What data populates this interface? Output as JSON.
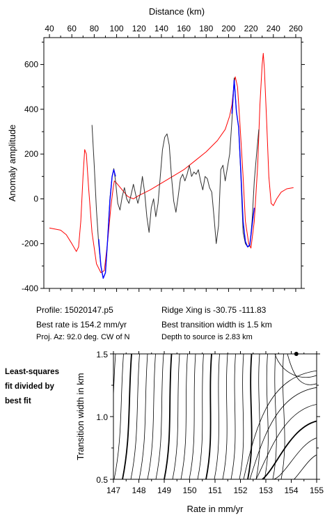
{
  "chart_data": [
    {
      "type": "line",
      "xlabel": "Distance (km)",
      "ylabel": "Anomaly amplitude",
      "xlim": [
        35,
        265
      ],
      "ylim": [
        -400,
        720
      ],
      "xticks": [
        "40",
        "60",
        "80",
        "100",
        "120",
        "140",
        "160",
        "180",
        "200",
        "220",
        "240",
        "260"
      ],
      "yticks": [
        "-400",
        "-200",
        "0",
        "200",
        "400",
        "600"
      ],
      "xtick_values": [
        40,
        60,
        80,
        100,
        120,
        140,
        160,
        180,
        200,
        220,
        240,
        260
      ],
      "ytick_values": [
        -400,
        -200,
        0,
        200,
        400,
        600
      ],
      "x_axis_position": "top",
      "grid": false,
      "series": [
        {
          "color": "#ff0000",
          "points": [
            [
              40,
              -130
            ],
            [
              50,
              -140
            ],
            [
              55,
              -160
            ],
            [
              60,
              -200
            ],
            [
              64,
              -235
            ],
            [
              66,
              -215
            ],
            [
              68,
              -100
            ],
            [
              70,
              100
            ],
            [
              71.5,
              220
            ],
            [
              73,
              200
            ],
            [
              75,
              50
            ],
            [
              78,
              -150
            ],
            [
              82,
              -290
            ],
            [
              86,
              -330
            ],
            [
              89,
              -320
            ],
            [
              92,
              -190
            ],
            [
              95,
              -30
            ],
            [
              97,
              50
            ],
            [
              98,
              80
            ],
            [
              100,
              70
            ],
            [
              105,
              40
            ],
            [
              110,
              10
            ],
            [
              115,
              0
            ],
            [
              120,
              15
            ],
            [
              130,
              40
            ],
            [
              140,
              70
            ],
            [
              150,
              100
            ],
            [
              160,
              130
            ],
            [
              170,
              170
            ],
            [
              180,
              210
            ],
            [
              190,
              260
            ],
            [
              197,
              310
            ],
            [
              201,
              370
            ],
            [
              203,
              420
            ],
            [
              205,
              520
            ],
            [
              206,
              545
            ],
            [
              208,
              500
            ],
            [
              210,
              350
            ],
            [
              213,
              100
            ],
            [
              215,
              -100
            ],
            [
              218,
              -200
            ],
            [
              220,
              -220
            ],
            [
              223,
              -100
            ],
            [
              226,
              150
            ],
            [
              228,
              420
            ],
            [
              230,
              600
            ],
            [
              231,
              650
            ],
            [
              232,
              580
            ],
            [
              234,
              350
            ],
            [
              236,
              100
            ],
            [
              238,
              -20
            ],
            [
              240,
              -30
            ],
            [
              243,
              0
            ],
            [
              247,
              30
            ],
            [
              252,
              45
            ],
            [
              258,
              50
            ]
          ]
        },
        {
          "color": "#303030",
          "points": [
            [
              78,
              330
            ],
            [
              80,
              150
            ],
            [
              82,
              -50
            ],
            [
              84,
              -200
            ],
            [
              86,
              -300
            ],
            [
              88,
              -355
            ],
            [
              90,
              -330
            ],
            [
              92,
              -180
            ],
            [
              94,
              0
            ],
            [
              96,
              100
            ],
            [
              97.5,
              135
            ],
            [
              99,
              80
            ],
            [
              101,
              -20
            ],
            [
              103,
              -50
            ],
            [
              105,
              10
            ],
            [
              107,
              50
            ],
            [
              109,
              0
            ],
            [
              111,
              -20
            ],
            [
              113,
              20
            ],
            [
              115,
              65
            ],
            [
              117,
              20
            ],
            [
              119,
              -20
            ],
            [
              121,
              20
            ],
            [
              123,
              100
            ],
            [
              125,
              30
            ],
            [
              127,
              -80
            ],
            [
              129,
              -150
            ],
            [
              131,
              -40
            ],
            [
              133,
              0
            ],
            [
              135,
              -80
            ],
            [
              137,
              -20
            ],
            [
              139,
              100
            ],
            [
              141,
              220
            ],
            [
              143,
              275
            ],
            [
              145,
              290
            ],
            [
              147,
              240
            ],
            [
              149,
              100
            ],
            [
              151,
              -10
            ],
            [
              153,
              -60
            ],
            [
              155,
              10
            ],
            [
              157,
              90
            ],
            [
              159,
              110
            ],
            [
              161,
              80
            ],
            [
              163,
              110
            ],
            [
              165,
              150
            ],
            [
              167,
              100
            ],
            [
              169,
              120
            ],
            [
              171,
              110
            ],
            [
              173,
              130
            ],
            [
              175,
              80
            ],
            [
              177,
              40
            ],
            [
              179,
              100
            ],
            [
              181,
              90
            ],
            [
              183,
              50
            ],
            [
              185,
              30
            ],
            [
              187,
              -80
            ],
            [
              189,
              -200
            ],
            [
              191,
              -120
            ],
            [
              193,
              130
            ],
            [
              195,
              150
            ],
            [
              197,
              80
            ],
            [
              199,
              140
            ],
            [
              201,
              200
            ],
            [
              203,
              350
            ],
            [
              205,
              540
            ],
            [
              207,
              390
            ],
            [
              209,
              320
            ],
            [
              211,
              100
            ],
            [
              213,
              -150
            ],
            [
              215,
              -200
            ],
            [
              217,
              -215
            ],
            [
              219,
              -210
            ],
            [
              221,
              -100
            ],
            [
              223,
              80
            ],
            [
              225,
              200
            ],
            [
              227,
              310
            ]
          ]
        },
        {
          "color": "#0000ff",
          "points": [
            [
              84,
              -180
            ],
            [
              86,
              -300
            ],
            [
              88,
              -355
            ],
            [
              90,
              -330
            ],
            [
              92,
              -180
            ],
            [
              94,
              -10
            ],
            [
              96,
              100
            ],
            [
              97.5,
              130
            ],
            [
              99,
              100
            ]
          ]
        },
        {
          "color": "#0000ff",
          "points": [
            [
              203,
              380
            ],
            [
              205,
              530
            ],
            [
              207,
              390
            ],
            [
              209,
              320
            ],
            [
              211,
              120
            ],
            [
              213,
              -100
            ],
            [
              215,
              -190
            ],
            [
              217,
              -215
            ],
            [
              219,
              -205
            ],
            [
              221,
              -120
            ],
            [
              223,
              -40
            ]
          ]
        }
      ]
    },
    {
      "type": "contour",
      "xlabel": "Rate in mm/yr",
      "ylabel": "Transition width in km",
      "xlim": [
        147,
        155
      ],
      "ylim": [
        0.5,
        1.5
      ],
      "xticks": [
        "147",
        "148",
        "149",
        "150",
        "151",
        "152",
        "153",
        "154",
        "155"
      ],
      "yticks": [
        "0.5",
        "1.0",
        "1.5"
      ],
      "xtick_values": [
        147,
        148,
        149,
        150,
        151,
        152,
        153,
        154,
        155
      ],
      "ytick_values": [
        0.5,
        1.0,
        1.5
      ],
      "best_fit": {
        "x": 154.2,
        "y": 1.5
      },
      "contour_levels_left_count": 22,
      "contour_levels_right_count": 6,
      "contour_line_color": "#000000"
    }
  ],
  "info": {
    "profile": "Profile: 15020147.p5",
    "best_rate": "Best rate is 154.2 mm/yr",
    "proj_az": "Proj. Az: 92.0 deg. CW of N",
    "ridge_xing": "Ridge Xing is -30.75 -111.83",
    "best_width": "Best transition width is 1.5 km",
    "depth": "Depth to source is   2.83 km"
  },
  "side_label": [
    "Least-squares",
    "fit divided by",
    "best fit"
  ]
}
